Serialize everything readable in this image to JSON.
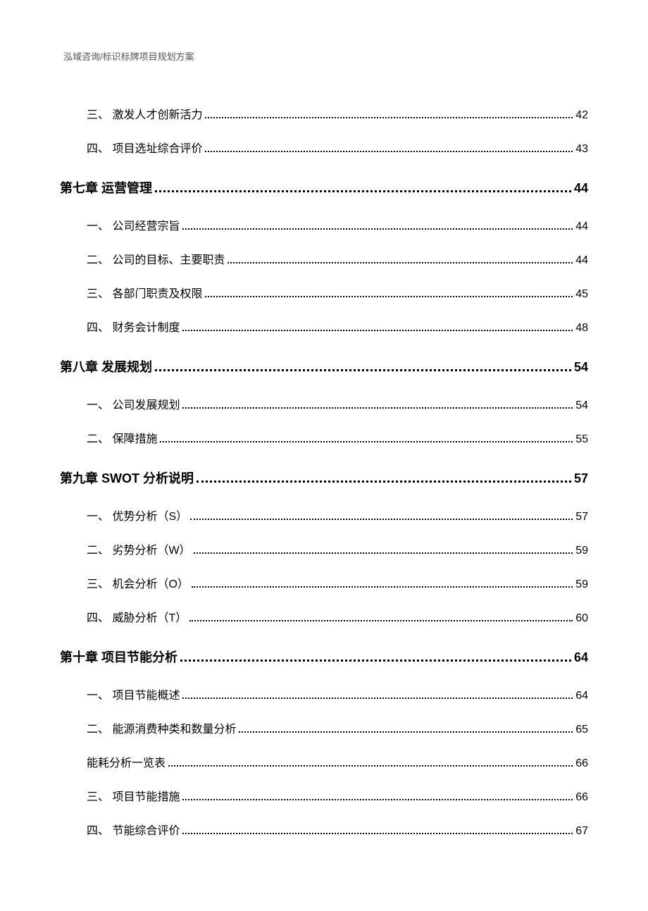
{
  "header": "泓域咨询/标识标牌项目规划方案",
  "toc_items": [
    {
      "level": "subsection",
      "text": "三、 激发人才创新活力",
      "page": "42"
    },
    {
      "level": "subsection",
      "text": "四、 项目选址综合评价",
      "page": "43"
    },
    {
      "level": "chapter",
      "text": "第七章 运营管理",
      "page": "44"
    },
    {
      "level": "subsection",
      "text": "一、 公司经营宗旨",
      "page": "44"
    },
    {
      "level": "subsection",
      "text": "二、 公司的目标、主要职责",
      "page": "44"
    },
    {
      "level": "subsection",
      "text": "三、 各部门职责及权限",
      "page": "45"
    },
    {
      "level": "subsection",
      "text": "四、 财务会计制度",
      "page": "48"
    },
    {
      "level": "chapter",
      "text": "第八章 发展规划",
      "page": "54"
    },
    {
      "level": "subsection",
      "text": "一、 公司发展规划",
      "page": "54"
    },
    {
      "level": "subsection",
      "text": "二、 保障措施",
      "page": "55"
    },
    {
      "level": "chapter",
      "text": "第九章 SWOT 分析说明",
      "page": "57"
    },
    {
      "level": "subsection",
      "text": "一、 优势分析（S）",
      "page": "57"
    },
    {
      "level": "subsection",
      "text": "二、 劣势分析（W）",
      "page": "59"
    },
    {
      "level": "subsection",
      "text": "三、 机会分析（O）",
      "page": "59"
    },
    {
      "level": "subsection",
      "text": "四、 威胁分析（T）",
      "page": "60"
    },
    {
      "level": "chapter",
      "text": "第十章 项目节能分析",
      "page": "64"
    },
    {
      "level": "subsection",
      "text": "一、 项目节能概述",
      "page": "64"
    },
    {
      "level": "subsection",
      "text": "二、 能源消费种类和数量分析",
      "page": "65"
    },
    {
      "level": "subsection",
      "text": "能耗分析一览表",
      "page": "66"
    },
    {
      "level": "subsection",
      "text": "三、 项目节能措施",
      "page": "66"
    },
    {
      "level": "subsection",
      "text": "四、 节能综合评价",
      "page": "67"
    }
  ]
}
